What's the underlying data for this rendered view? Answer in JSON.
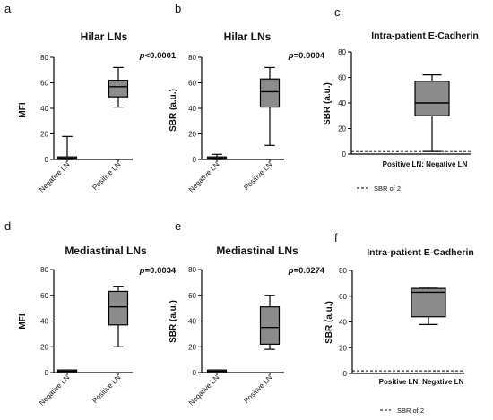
{
  "chart_data": [
    {
      "id": "a",
      "type": "box",
      "panel_label": "a",
      "title": "Hilar LNs",
      "ylabel": "MFI",
      "ylim": [
        0,
        80
      ],
      "yticks": [
        0,
        20,
        40,
        60,
        80
      ],
      "categories": [
        "Negative  LN",
        "Positive LN"
      ],
      "boxes": [
        {
          "min": 0,
          "q1": 0,
          "median": 1,
          "q3": 2,
          "max": 18
        },
        {
          "min": 41,
          "q1": 49,
          "median": 57,
          "q3": 62,
          "max": 72
        }
      ],
      "p_prefix": "p",
      "p_value": "<0.0001"
    },
    {
      "id": "b",
      "type": "box",
      "panel_label": "b",
      "title": "Hilar LNs",
      "ylabel": "SBR (a.u.)",
      "ylim": [
        0,
        80
      ],
      "yticks": [
        0,
        20,
        40,
        60,
        80
      ],
      "categories": [
        "Negative  LN",
        "Positive LN"
      ],
      "boxes": [
        {
          "min": 0,
          "q1": 0,
          "median": 1,
          "q3": 2,
          "max": 4
        },
        {
          "min": 11,
          "q1": 41,
          "median": 53,
          "q3": 63,
          "max": 72
        }
      ],
      "p_prefix": "p",
      "p_value": "=0.0004"
    },
    {
      "id": "c",
      "type": "box",
      "panel_label": "c",
      "title": "Intra-patient E-Cadherin",
      "ylabel": "SBR (a.u.)",
      "ylim": [
        0,
        80
      ],
      "yticks": [
        0,
        20,
        40,
        60,
        80
      ],
      "categories": [
        "Positive LN: Negative LN"
      ],
      "boxes": [
        {
          "min": 2,
          "q1": 30,
          "median": 40,
          "q3": 57,
          "max": 62
        }
      ],
      "reference_line": {
        "y": 2,
        "label": "SBR of 2"
      }
    },
    {
      "id": "d",
      "type": "box",
      "panel_label": "d",
      "title": "Mediastinal LNs",
      "ylabel": "MFI",
      "ylim": [
        0,
        80
      ],
      "yticks": [
        0,
        20,
        40,
        60,
        80
      ],
      "categories": [
        "Negative  LN",
        "Positive LN"
      ],
      "boxes": [
        {
          "min": 0,
          "q1": 0,
          "median": 1,
          "q3": 2,
          "max": 2
        },
        {
          "min": 20,
          "q1": 37,
          "median": 51,
          "q3": 63,
          "max": 67
        }
      ],
      "p_prefix": "p",
      "p_value": "=0.0034"
    },
    {
      "id": "e",
      "type": "box",
      "panel_label": "e",
      "title": "Mediastinal LNs",
      "ylabel": "SBR (a.u.)",
      "ylim": [
        0,
        80
      ],
      "yticks": [
        0,
        20,
        40,
        60,
        80
      ],
      "categories": [
        "Negative  LN",
        "Positive LN"
      ],
      "boxes": [
        {
          "min": 0,
          "q1": 0,
          "median": 1,
          "q3": 2,
          "max": 2
        },
        {
          "min": 18,
          "q1": 22,
          "median": 35,
          "q3": 51,
          "max": 60
        }
      ],
      "p_prefix": "p",
      "p_value": "=0.0274"
    },
    {
      "id": "f",
      "type": "box",
      "panel_label": "f",
      "title": "Intra-patient E-Cadherin",
      "ylabel": "SBR (a.u.)",
      "ylim": [
        0,
        80
      ],
      "yticks": [
        0,
        20,
        40,
        60,
        80
      ],
      "categories": [
        "Positive LN: Negative LN"
      ],
      "boxes": [
        {
          "min": 38,
          "q1": 44,
          "median": 63,
          "q3": 66,
          "max": 67
        }
      ],
      "reference_line": {
        "y": 2,
        "label": "SBR of 2"
      }
    }
  ],
  "colors": {
    "box_fill": "#8c8c8c",
    "stroke": "#000000",
    "text": "#111111"
  }
}
